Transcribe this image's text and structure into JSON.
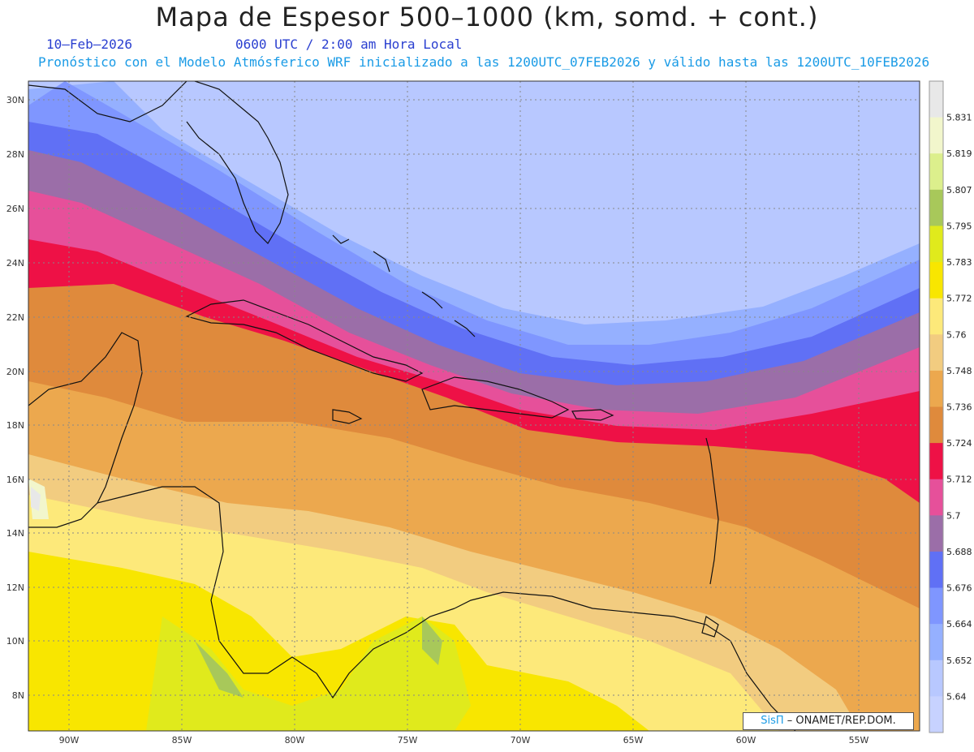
{
  "header": {
    "title": "Mapa de Espesor 500–1000 (km, somd. + cont.)",
    "date": "10–Feb–2026",
    "time": "0600 UTC / 2:00 am Hora Local",
    "forecast": "Pronóstico con el Modelo Atmósferico WRF inicializado a las 1200UTC_07FEB2026 y válido hasta las  1200UTC_10FEB2026"
  },
  "map": {
    "lon_labels": [
      "90W",
      "85W",
      "80W",
      "75W",
      "70W",
      "65W",
      "60W",
      "55W"
    ],
    "lat_labels": [
      "30N",
      "28N",
      "26N",
      "24N",
      "22N",
      "20N",
      "18N",
      "16N",
      "14N",
      "12N",
      "10N",
      "8N"
    ]
  },
  "colorbar": {
    "labels": [
      "5.831",
      "5.819",
      "5.807",
      "5.795",
      "5.783",
      "5.772",
      "5.76",
      "5.748",
      "5.736",
      "5.724",
      "5.712",
      "5.7",
      "5.688",
      "5.676",
      "5.664",
      "5.652",
      "5.64"
    ],
    "colors": [
      "#e8e8e8",
      "#f2f6cc",
      "#dcef8c",
      "#a8c85a",
      "#e0ea1c",
      "#f8e600",
      "#fde97a",
      "#f2cc80",
      "#eca84e",
      "#df8a3c",
      "#ee1146",
      "#e6509a",
      "#9b6ea8",
      "#6070f5",
      "#7f96ff",
      "#95b0ff",
      "#b8c8ff",
      "#c7d2ff"
    ]
  },
  "credit": {
    "brand": "SisΠ",
    "text": "– ONAMET/REP.DOM."
  }
}
